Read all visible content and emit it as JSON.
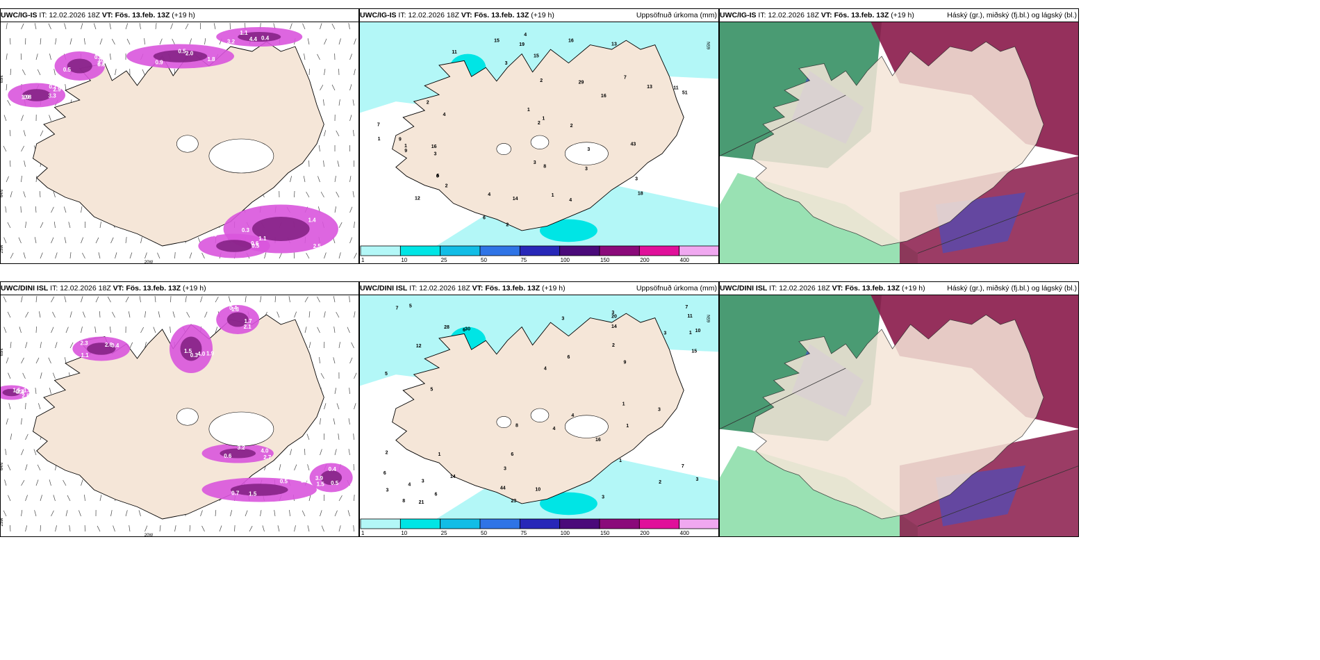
{
  "panels": [
    {
      "row": "top",
      "col": "wind",
      "source": "UWC/IG-IS",
      "it_label": "IT:",
      "it": "12.02.2026 18Z",
      "vt_label": "VT:",
      "vt": "Fös. 13.feb. 13Z",
      "lead": "(+19 h)",
      "right_title": "",
      "values": [
        "2.9",
        "2.2",
        "2.0",
        "3.2",
        "2.5",
        "0.5",
        "3.3",
        "0.5",
        "1.8",
        "4.4",
        "1.3",
        "1.1",
        "1.9",
        "0.8",
        "0.5",
        "0.4",
        "0.3",
        "0.6",
        "0.7",
        "0.8",
        "0.9",
        "1.1",
        "1.4",
        "1.6",
        "0.8",
        "0.9"
      ],
      "axis_labels": [
        "20W",
        "25W",
        "65N",
        "64N"
      ]
    },
    {
      "row": "top",
      "col": "precip",
      "source": "UWC/IG-IS",
      "it_label": "IT:",
      "it": "12.02.2026 18Z",
      "vt_label": "VT:",
      "vt": "Fös. 13.feb. 13Z",
      "lead": "(+19 h)",
      "right_title": "Uppsöfnuð úrkoma (mm)",
      "values": [
        "12",
        "13",
        "11",
        "7",
        "8",
        "4",
        "3",
        "5",
        "13",
        "16",
        "9",
        "4",
        "3",
        "2",
        "2",
        "15",
        "18",
        "7",
        "6",
        "6",
        "4",
        "19",
        "3",
        "1",
        "1",
        "4",
        "1",
        "16",
        "2",
        "3",
        "2",
        "2",
        "1",
        "3",
        "3",
        "9",
        "11",
        "2",
        "29",
        "43",
        "51",
        "15",
        "14",
        "16",
        "1"
      ],
      "axis_labels": [
        "65N"
      ]
    },
    {
      "row": "top",
      "col": "cloud",
      "source": "UWC/IG-IS",
      "it_label": "IT:",
      "it": "12.02.2026 18Z",
      "vt_label": "VT:",
      "vt": "Fös. 13.feb. 13Z",
      "lead": "(+19 h)",
      "right_title": "Háský (gr.), miðský (fj.bl.) og lágský (bl.)",
      "values": [],
      "axis_labels": []
    },
    {
      "row": "bottom",
      "col": "wind",
      "source": "UWC/DINI ISL",
      "it_label": "IT:",
      "it": "12.02.2026 18Z",
      "vt_label": "VT:",
      "vt": "Fös. 13.feb. 13Z",
      "lead": "(+19 h)",
      "right_title": "",
      "values": [
        "1.5",
        "1.1",
        "1.5",
        "1.7",
        "3.2",
        "2.3",
        "3.9",
        "1.8",
        "2.3",
        "1.9",
        "2.1",
        "4.0",
        "0.5",
        "1.5",
        "2.5",
        "0.4",
        "0.3",
        "0.4",
        "0.6",
        "0.7",
        "0.4",
        "3.4",
        "2.6",
        "4.0",
        "1.3",
        "2.7",
        "1.5",
        "0.5",
        "0.3"
      ],
      "axis_labels": [
        "20W",
        "25W",
        "65N",
        "64N"
      ]
    },
    {
      "row": "bottom",
      "col": "precip",
      "source": "UWC/DINI ISL",
      "it_label": "IT:",
      "it": "12.02.2026 18Z",
      "vt_label": "VT:",
      "vt": "Fös. 13.feb. 13Z",
      "lead": "(+19 h)",
      "right_title": "Uppsöfnuð úrkoma (mm)",
      "values": [
        "4",
        "3",
        "6",
        "10",
        "16",
        "10",
        "2",
        "3",
        "5",
        "6",
        "7",
        "14",
        "30",
        "14",
        "6",
        "11",
        "7",
        "8",
        "23",
        "1",
        "5",
        "15",
        "3",
        "9",
        "1",
        "5",
        "1",
        "3",
        "4",
        "3",
        "6",
        "8",
        "2",
        "3",
        "1",
        "3",
        "7",
        "6",
        "4",
        "12",
        "44",
        "28",
        "20",
        "21",
        "3",
        "4",
        "1",
        "2",
        "3"
      ],
      "axis_labels": [
        "65N"
      ]
    },
    {
      "row": "bottom",
      "col": "cloud",
      "source": "UWC/DINI ISL",
      "it_label": "IT:",
      "it": "12.02.2026 18Z",
      "vt_label": "VT:",
      "vt": "Fös. 13.feb. 13Z",
      "lead": "(+19 h)",
      "right_title": "Háský (gr.), miðský (fj.bl.) og lágský (bl.)",
      "values": [],
      "axis_labels": []
    }
  ],
  "colorbar": {
    "ticks": [
      "1",
      "10",
      "25",
      "50",
      "75",
      "100",
      "150",
      "200",
      "400"
    ],
    "colors": [
      "#b3f7f7",
      "#00e5e5",
      "#12bde6",
      "#2f74e6",
      "#2727b8",
      "#4a0a7a",
      "#8a0a7a",
      "#e0109a",
      "#f0a8f0"
    ]
  },
  "colors": {
    "land": "#f5e6d8",
    "snow": "#ffffff",
    "magenta": "#d955dd",
    "purple": "#7a1a7a",
    "precip_light": "#b3f7f7",
    "precip_mid": "#00e5e5",
    "cloud_high": "#8a1a4a",
    "cloud_mid": "#3f4fc8",
    "cloud_low": "#2a8a5a",
    "cloud_low_light": "#7fd9a0"
  }
}
